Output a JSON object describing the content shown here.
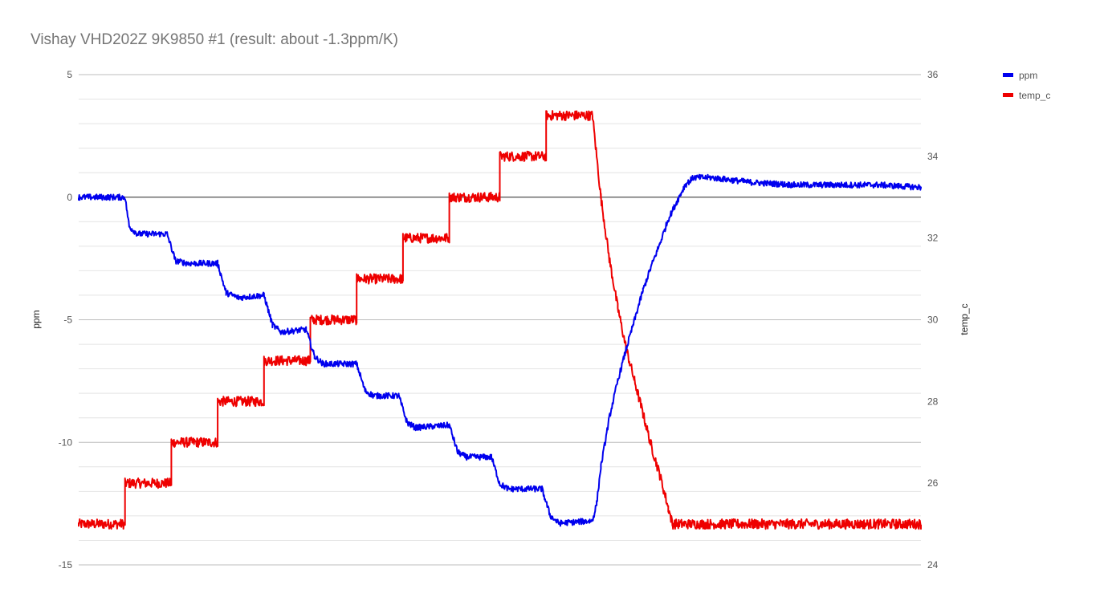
{
  "chart_data": {
    "type": "line",
    "title": "Vishay VHD202Z 9K9850 #1 (result: about -1.3ppm/K)",
    "ylabel_left": "ppm",
    "ylabel_right": "temp_c",
    "ylim_left": [
      -15,
      5
    ],
    "ylim_right": [
      24,
      36
    ],
    "yticks_left": [
      "5",
      "0",
      "-5",
      "-10",
      "-15"
    ],
    "yticks_right": [
      "36",
      "34",
      "32",
      "30",
      "28",
      "26",
      "24"
    ],
    "grid": true,
    "legend_position": "top-right",
    "x_range": [
      0,
      100
    ],
    "series": [
      {
        "name": "ppm",
        "color": "#0000ee",
        "axis": "left",
        "points": [
          [
            0,
            0.0
          ],
          [
            5.5,
            0.0
          ],
          [
            6,
            -1.2
          ],
          [
            7,
            -1.5
          ],
          [
            10.5,
            -1.5
          ],
          [
            11.5,
            -2.6
          ],
          [
            13,
            -2.7
          ],
          [
            16.5,
            -2.7
          ],
          [
            17.5,
            -3.9
          ],
          [
            19,
            -4.1
          ],
          [
            22,
            -4.0
          ],
          [
            23,
            -5.2
          ],
          [
            24,
            -5.5
          ],
          [
            27,
            -5.4
          ],
          [
            28,
            -6.5
          ],
          [
            29,
            -6.8
          ],
          [
            33,
            -6.8
          ],
          [
            34,
            -7.9
          ],
          [
            35,
            -8.1
          ],
          [
            38,
            -8.1
          ],
          [
            39,
            -9.2
          ],
          [
            40,
            -9.4
          ],
          [
            44,
            -9.3
          ],
          [
            45,
            -10.4
          ],
          [
            46,
            -10.6
          ],
          [
            49,
            -10.6
          ],
          [
            50,
            -11.7
          ],
          [
            51,
            -11.9
          ],
          [
            55,
            -11.9
          ],
          [
            56,
            -13.0
          ],
          [
            57,
            -13.3
          ],
          [
            61,
            -13.2
          ],
          [
            61.5,
            -12.5
          ],
          [
            62,
            -11.0
          ],
          [
            63,
            -9.0
          ],
          [
            64,
            -7.5
          ],
          [
            65,
            -6.2
          ],
          [
            66,
            -5.0
          ],
          [
            67,
            -3.8
          ],
          [
            68,
            -2.8
          ],
          [
            69,
            -1.9
          ],
          [
            70,
            -0.9
          ],
          [
            71,
            -0.2
          ],
          [
            72,
            0.5
          ],
          [
            73,
            0.8
          ],
          [
            75,
            0.8
          ],
          [
            80,
            0.6
          ],
          [
            85,
            0.5
          ],
          [
            90,
            0.5
          ],
          [
            95,
            0.5
          ],
          [
            100,
            0.4
          ]
        ]
      },
      {
        "name": "temp_c",
        "color": "#ee0000",
        "axis": "right",
        "points": [
          [
            0,
            25.0
          ],
          [
            5.5,
            25.0
          ],
          [
            5.5,
            26.0
          ],
          [
            11,
            26.0
          ],
          [
            11,
            27.0
          ],
          [
            16.5,
            27.0
          ],
          [
            16.5,
            28.0
          ],
          [
            22,
            28.0
          ],
          [
            22,
            29.0
          ],
          [
            27.5,
            29.0
          ],
          [
            27.5,
            30.0
          ],
          [
            33,
            30.0
          ],
          [
            33,
            31.0
          ],
          [
            38.5,
            31.0
          ],
          [
            38.5,
            32.0
          ],
          [
            44,
            32.0
          ],
          [
            44,
            33.0
          ],
          [
            50,
            33.0
          ],
          [
            50,
            34.0
          ],
          [
            55.5,
            34.0
          ],
          [
            55.5,
            35.0
          ],
          [
            61,
            35.0
          ],
          [
            62,
            33.0
          ],
          [
            63,
            31.5
          ],
          [
            64,
            30.3
          ],
          [
            65,
            29.3
          ],
          [
            66,
            28.5
          ],
          [
            67,
            27.7
          ],
          [
            68,
            26.9
          ],
          [
            69,
            26.2
          ],
          [
            70,
            25.4
          ],
          [
            70.5,
            25.0
          ],
          [
            75,
            25.0
          ],
          [
            80,
            25.0
          ],
          [
            85,
            25.0
          ],
          [
            90,
            25.0
          ],
          [
            95,
            25.0
          ],
          [
            100,
            25.0
          ]
        ]
      }
    ]
  }
}
